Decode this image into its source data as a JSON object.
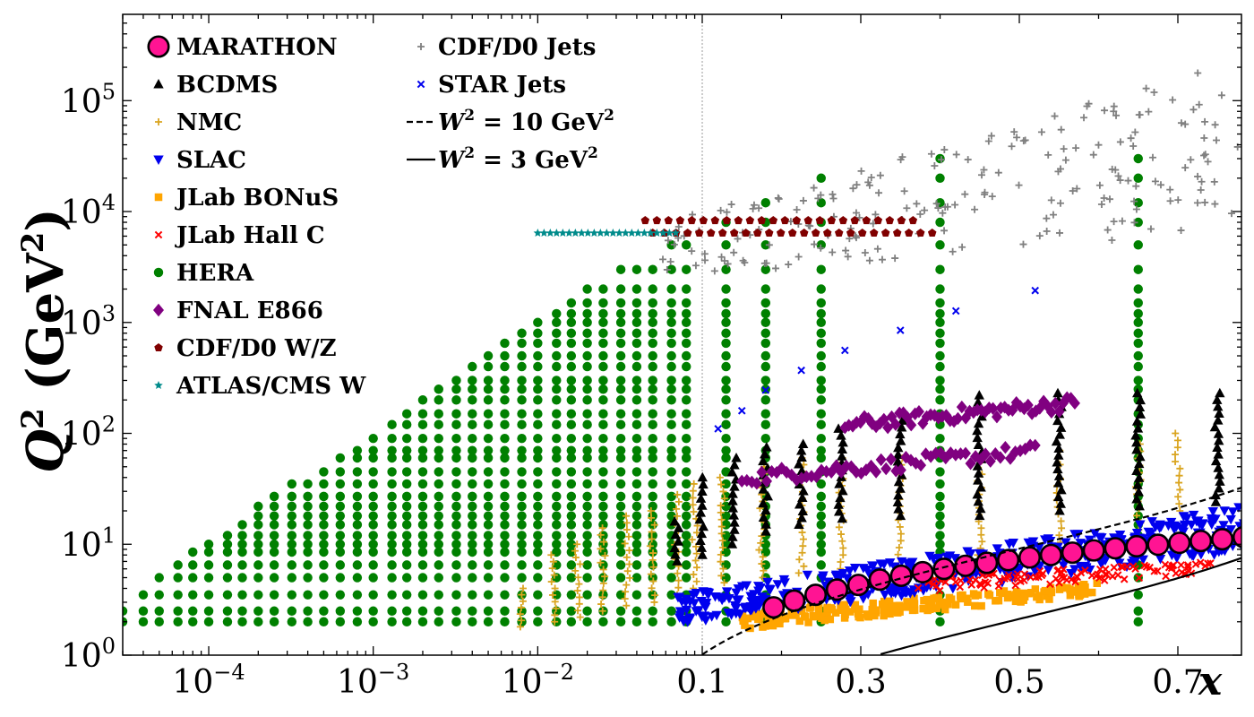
{
  "chart_data": {
    "type": "scatter",
    "x_scale": "log for x < 0.1, linear for x >= 0.1",
    "y_scale": "log",
    "xlabel": "x",
    "ylabel_main": "Q",
    "ylabel_sup": "2",
    "ylabel_unit_open": " (GeV",
    "ylabel_unit_sup": "2",
    "ylabel_unit_close": ")",
    "xlim": [
      3e-05,
      0.9
    ],
    "ylim": [
      1,
      600000
    ],
    "x_ticks_log": [
      {
        "value": 0.0001,
        "base": "10",
        "exp": "−4"
      },
      {
        "value": 0.001,
        "base": "10",
        "exp": "−3"
      },
      {
        "value": 0.01,
        "base": "10",
        "exp": "−2"
      }
    ],
    "x_ticks_linear": [
      {
        "value": 0.1,
        "label": "0.1"
      },
      {
        "value": 0.3,
        "label": "0.3"
      },
      {
        "value": 0.5,
        "label": "0.5"
      },
      {
        "value": 0.7,
        "label": "0.7"
      }
    ],
    "y_ticks": [
      {
        "value": 1,
        "base": "10",
        "exp": "0"
      },
      {
        "value": 10,
        "base": "10",
        "exp": "1"
      },
      {
        "value": 100,
        "base": "10",
        "exp": "2"
      },
      {
        "value": 1000,
        "base": "10",
        "exp": "3"
      },
      {
        "value": 10000,
        "base": "10",
        "exp": "4"
      },
      {
        "value": 100000,
        "base": "10",
        "exp": "5"
      }
    ],
    "vertical_line": 0.1,
    "series": [
      {
        "name": "MARATHON",
        "marker": "big-circle",
        "color": "#ff1493",
        "points": [
          [
            0.19,
            2.7
          ],
          [
            0.216,
            3.1
          ],
          [
            0.243,
            3.5
          ],
          [
            0.27,
            3.9
          ],
          [
            0.297,
            4.3
          ],
          [
            0.324,
            4.8
          ],
          [
            0.351,
            5.2
          ],
          [
            0.378,
            5.6
          ],
          [
            0.405,
            6.0
          ],
          [
            0.432,
            6.4
          ],
          [
            0.459,
            6.8
          ],
          [
            0.486,
            7.2
          ],
          [
            0.513,
            7.6
          ],
          [
            0.54,
            8.0
          ],
          [
            0.567,
            8.4
          ],
          [
            0.594,
            8.8
          ],
          [
            0.621,
            9.2
          ],
          [
            0.648,
            9.6
          ],
          [
            0.675,
            9.9
          ],
          [
            0.702,
            10.3
          ],
          [
            0.729,
            10.7
          ],
          [
            0.756,
            11.1
          ],
          [
            0.783,
            11.6
          ]
        ]
      },
      {
        "name": "BCDMS",
        "marker": "triangle-up",
        "color": "#000000",
        "columns": [
          [
            0.07,
            7,
            16
          ],
          [
            0.1,
            8,
            40
          ],
          [
            0.14,
            10,
            60
          ],
          [
            0.18,
            13,
            75
          ],
          [
            0.225,
            15,
            80
          ],
          [
            0.275,
            17,
            110
          ],
          [
            0.35,
            18,
            130
          ],
          [
            0.45,
            18,
            220
          ],
          [
            0.55,
            20,
            230
          ],
          [
            0.65,
            22,
            230
          ],
          [
            0.75,
            24,
            230
          ]
        ]
      },
      {
        "name": "NMC",
        "marker": "plus",
        "color": "#daa520",
        "columns": [
          [
            0.008,
            1.8,
            4
          ],
          [
            0.0125,
            2,
            8
          ],
          [
            0.0175,
            2.2,
            10
          ],
          [
            0.025,
            2.5,
            14
          ],
          [
            0.035,
            2.8,
            18
          ],
          [
            0.05,
            3,
            20
          ],
          [
            0.07,
            3.5,
            28
          ],
          [
            0.09,
            4,
            35
          ],
          [
            0.125,
            4.5,
            40
          ],
          [
            0.175,
            5,
            50
          ],
          [
            0.225,
            5.5,
            60
          ],
          [
            0.275,
            6,
            60
          ],
          [
            0.35,
            7,
            60
          ],
          [
            0.45,
            8,
            65
          ],
          [
            0.55,
            9,
            70
          ],
          [
            0.65,
            10,
            80
          ],
          [
            0.7,
            20,
            100
          ]
        ]
      },
      {
        "name": "SLAC",
        "marker": "triangle-down",
        "color": "#0000ee",
        "cloud": {
          "x": [
            0.07,
            0.9
          ],
          "ylo_at_start": 1.9,
          "ylo_at_end": 11,
          "yhi_at_start": 3.5,
          "yhi_at_end": 30,
          "count": 520
        }
      },
      {
        "name": "JLab BONuS",
        "marker": "square",
        "color": "#ffa500",
        "cloud": {
          "x": [
            0.15,
            0.6
          ],
          "ylo_at_start": 1.7,
          "ylo_at_end": 3.5,
          "yhi_at_start": 2.4,
          "yhi_at_end": 4.5,
          "count": 200
        }
      },
      {
        "name": "JLab Hall C",
        "marker": "x",
        "color": "#ff0000",
        "cloud": {
          "x": [
            0.35,
            0.75
          ],
          "ylo_at_start": 3.5,
          "ylo_at_end": 5.5,
          "yhi_at_start": 5,
          "yhi_at_end": 7,
          "count": 110
        }
      },
      {
        "name": "HERA",
        "marker": "circle",
        "color": "#008000",
        "grid": {
          "q2": [
            2,
            2.5,
            3.5,
            5,
            6.5,
            8.5,
            10,
            12,
            15,
            18,
            22,
            27,
            35,
            45,
            60,
            70,
            90,
            120,
            150,
            200,
            250,
            300,
            400,
            500,
            650,
            800,
            1000,
            1200,
            1500,
            2000,
            3000,
            5000,
            8000,
            12000,
            20000,
            30000
          ],
          "x": [
            3e-05,
            4e-05,
            5e-05,
            6.5e-05,
            8e-05,
            0.0001,
            0.00013,
            0.00016,
            0.0002,
            0.00025,
            0.00032,
            0.0004,
            0.0005,
            0.00063,
            0.0008,
            0.001,
            0.0013,
            0.0016,
            0.002,
            0.0025,
            0.0032,
            0.004,
            0.005,
            0.0063,
            0.008,
            0.01,
            0.013,
            0.016,
            0.02,
            0.025,
            0.032,
            0.04,
            0.05,
            0.065,
            0.08,
            0.13,
            0.18,
            0.25,
            0.4,
            0.65
          ],
          "xq2_min": 1.8e-05,
          "q2_max_by_x": [
            [
              0.02,
              3000
            ],
            [
              0.04,
              3000
            ],
            [
              0.065,
              5000
            ],
            [
              0.08,
              5000
            ],
            [
              0.13,
              8000
            ],
            [
              0.18,
              12000
            ],
            [
              0.25,
              20000
            ],
            [
              0.4,
              30000
            ],
            [
              0.65,
              50000
            ]
          ]
        }
      },
      {
        "name": "FNAL E866",
        "marker": "diamond",
        "color": "#800080",
        "bands": [
          {
            "x": [
              0.15,
              0.52
            ],
            "q_start": 40,
            "q_end": 70
          },
          {
            "x": [
              0.28,
              0.57
            ],
            "q_start": 120,
            "q_end": 190
          }
        ]
      },
      {
        "name": "CDF/D0 W/Z",
        "marker": "pentagon",
        "color": "#800000",
        "rows": [
          {
            "x": [
              0.045,
              0.37
            ],
            "q2": 8300
          },
          {
            "x": [
              0.05,
              0.4
            ],
            "q2": 6400
          }
        ]
      },
      {
        "name": "ATLAS/CMS W",
        "marker": "star",
        "color": "#008b8b",
        "rows": [
          {
            "x": [
              0.01,
              0.075
            ],
            "q2": 6400
          }
        ]
      },
      {
        "name": "CDF/D0 Jets",
        "marker": "plus",
        "color": "#808080",
        "cloud": {
          "x": [
            0.05,
            0.9
          ],
          "ylo_at_start": 2500,
          "ylo_at_end": 8000,
          "yhi_at_start": 8000,
          "yhi_at_end": 400000,
          "count": 230
        }
      },
      {
        "name": "STAR Jets",
        "marker": "x",
        "color": "#0000ee",
        "points": [
          [
            0.12,
            110
          ],
          [
            0.15,
            160
          ],
          [
            0.18,
            245
          ],
          [
            0.225,
            370
          ],
          [
            0.28,
            560
          ],
          [
            0.35,
            850
          ],
          [
            0.42,
            1270
          ],
          [
            0.52,
            1940
          ]
        ]
      }
    ],
    "curves": [
      {
        "name": "W² = 10 GeV²",
        "label_lhs": "W",
        "label_sup": "2",
        "label_rhs": " = 10 GeV",
        "label_unit_sup": "2",
        "style": "dashed",
        "w2": 10
      },
      {
        "name": "W² = 3 GeV²",
        "label_lhs": "W",
        "label_sup": "2",
        "label_rhs": " = 3 GeV",
        "label_unit_sup": "2",
        "style": "solid",
        "w2": 3
      }
    ],
    "legend_placement": "top-left, two columns"
  }
}
